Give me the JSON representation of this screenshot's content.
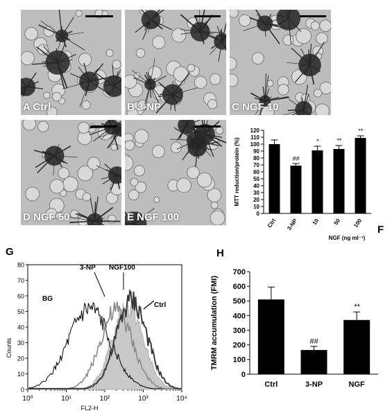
{
  "panels": {
    "a": {
      "label": "A Ctrl"
    },
    "b": {
      "label": "B 3-NP"
    },
    "c": {
      "label": "C NGF 10"
    },
    "d": {
      "label": "D NGF 50"
    },
    "e": {
      "label": "E NGF 100"
    }
  },
  "figure_letters": {
    "f": "F",
    "g": "G",
    "h": "H"
  },
  "chart_data": [
    {
      "id": "F",
      "type": "bar",
      "categories": [
        "Ctrl",
        "3-NP",
        "10",
        "50",
        "100"
      ],
      "values": [
        100,
        69,
        91,
        93,
        109
      ],
      "errors": [
        6,
        3,
        6,
        5,
        3
      ],
      "markers": [
        "",
        "##",
        "*",
        "**",
        "**"
      ],
      "ylabel": "MTT reduction/protein (%)",
      "xlabel": "NGF (ng ml⁻¹)",
      "ylim": [
        0,
        120
      ],
      "yticks": [
        "0",
        "10",
        "20",
        "30",
        "40",
        "50",
        "60",
        "70",
        "80",
        "90",
        "100",
        "110",
        "120"
      ],
      "bar_color": "#000000"
    },
    {
      "id": "G",
      "type": "line",
      "xscale": "log",
      "xlim": [
        1,
        10000
      ],
      "ylim": [
        0,
        80
      ],
      "xlabel": "FL2-H",
      "ylabel": "Counts",
      "yticks": [
        "0",
        "10",
        "20",
        "30",
        "40",
        "50",
        "60",
        "70",
        "80"
      ],
      "xticks": [
        "10⁰",
        "10¹",
        "10²",
        "10³",
        "10⁴"
      ],
      "annotations": [
        "BG",
        "3-NP",
        "NGF100",
        "Ctrl"
      ],
      "series": [
        {
          "name": "BG",
          "peak_x": 40,
          "peak_y": 53,
          "width": 0.55
        },
        {
          "name": "3-NP",
          "peak_x": 200,
          "peak_y": 52,
          "width": 0.42
        },
        {
          "name": "NGF100",
          "peak_x": 400,
          "peak_y": 56,
          "width": 0.4
        },
        {
          "name": "Ctrl",
          "peak_x": 500,
          "peak_y": 59,
          "width": 0.4
        }
      ]
    },
    {
      "id": "H",
      "type": "bar",
      "categories": [
        "Ctrl",
        "3-NP",
        "NGF"
      ],
      "values": [
        510,
        165,
        370
      ],
      "errors": [
        85,
        25,
        55
      ],
      "markers": [
        "",
        "##",
        "**"
      ],
      "ylabel": "TMRM accumulation (FMI)",
      "ylim": [
        0,
        700
      ],
      "yticks": [
        "0",
        "100",
        "200",
        "300",
        "400",
        "500",
        "600",
        "700"
      ],
      "bar_color": "#000000"
    }
  ]
}
